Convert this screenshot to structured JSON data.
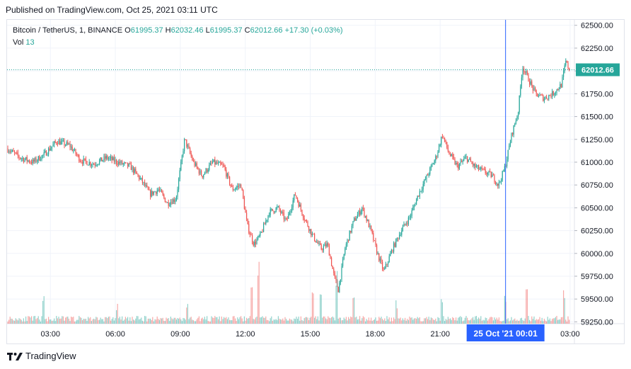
{
  "header": {
    "published": "Published on TradingView.com, Oct 25, 2021 03:11 UTC"
  },
  "legend": {
    "symbol": "Bitcoin / TetherUS, 1, BINANCE",
    "open_label": "O",
    "open": "61995.37",
    "high_label": "H",
    "high": "62032.46",
    "low_label": "L",
    "low": "61995.37",
    "close_label": "C",
    "close": "62012.66",
    "change": "+17.30 (+0.03%)",
    "vol_label": "Vol",
    "vol": "13"
  },
  "footer": {
    "brand": "TradingView"
  },
  "colors": {
    "up": "#26a69a",
    "down": "#ef5350",
    "crosshair": "#2962ff",
    "grid": "#f0f3fa",
    "axis_text": "#131722"
  },
  "chart_data": {
    "type": "candlestick",
    "title": "Bitcoin / TetherUS, 1, BINANCE",
    "grid": true,
    "y_axis": {
      "position": "right",
      "ticks": [
        "62500.00",
        "62250.00",
        "62000.00",
        "61750.00",
        "61500.00",
        "61250.00",
        "61000.00",
        "60750.00",
        "60500.00",
        "60250.00",
        "60000.00",
        "59750.00",
        "59500.00",
        "59250.00"
      ],
      "range": [
        59230,
        62560
      ]
    },
    "x_axis": {
      "ticks": [
        "03:00",
        "06:00",
        "09:00",
        "12:00",
        "15:00",
        "18:00",
        "21:00",
        "03:00"
      ],
      "tick_hours": [
        3,
        6,
        9,
        12,
        15,
        18,
        21,
        27
      ],
      "range_hours": [
        1.0,
        27.2
      ]
    },
    "last_price": {
      "value": 62012.66,
      "label": "62012.66"
    },
    "crosshair": {
      "label": "25 Oct '21   00:01",
      "hour": 24.02
    },
    "price_path": [
      [
        1.0,
        61150
      ],
      [
        1.6,
        61050
      ],
      [
        2.2,
        61000
      ],
      [
        2.7,
        61080
      ],
      [
        3.3,
        61230
      ],
      [
        3.9,
        61180
      ],
      [
        4.4,
        61020
      ],
      [
        5.0,
        60980
      ],
      [
        5.6,
        61050
      ],
      [
        6.1,
        61000
      ],
      [
        6.7,
        60950
      ],
      [
        7.2,
        60800
      ],
      [
        7.6,
        60650
      ],
      [
        8.0,
        60700
      ],
      [
        8.4,
        60550
      ],
      [
        8.8,
        60600
      ],
      [
        9.2,
        61250
      ],
      [
        9.6,
        61000
      ],
      [
        10.0,
        60850
      ],
      [
        10.5,
        61000
      ],
      [
        11.0,
        60950
      ],
      [
        11.4,
        60700
      ],
      [
        11.8,
        60750
      ],
      [
        12.1,
        60300
      ],
      [
        12.4,
        60100
      ],
      [
        12.7,
        60200
      ],
      [
        13.1,
        60450
      ],
      [
        13.5,
        60500
      ],
      [
        13.9,
        60350
      ],
      [
        14.3,
        60650
      ],
      [
        14.7,
        60400
      ],
      [
        15.1,
        60200
      ],
      [
        15.5,
        60050
      ],
      [
        15.8,
        60100
      ],
      [
        16.1,
        59750
      ],
      [
        16.3,
        59600
      ],
      [
        16.6,
        60050
      ],
      [
        17.0,
        60350
      ],
      [
        17.4,
        60500
      ],
      [
        17.8,
        60250
      ],
      [
        18.1,
        60000
      ],
      [
        18.4,
        59800
      ],
      [
        18.8,
        60050
      ],
      [
        19.2,
        60250
      ],
      [
        19.6,
        60400
      ],
      [
        20.0,
        60650
      ],
      [
        20.4,
        60850
      ],
      [
        20.8,
        61050
      ],
      [
        21.1,
        61300
      ],
      [
        21.4,
        61100
      ],
      [
        21.8,
        60950
      ],
      [
        22.2,
        61050
      ],
      [
        22.6,
        60950
      ],
      [
        23.0,
        60900
      ],
      [
        23.4,
        60850
      ],
      [
        23.7,
        60750
      ],
      [
        24.0,
        60950
      ],
      [
        24.3,
        61300
      ],
      [
        24.6,
        61550
      ],
      [
        24.8,
        62050
      ],
      [
        25.1,
        61900
      ],
      [
        25.4,
        61750
      ],
      [
        25.8,
        61700
      ],
      [
        26.2,
        61750
      ],
      [
        26.6,
        61850
      ],
      [
        26.8,
        62100
      ],
      [
        27.0,
        62000
      ]
    ],
    "volume_spikes": [
      [
        2.7,
        40
      ],
      [
        6.1,
        30
      ],
      [
        9.3,
        35
      ],
      [
        12.3,
        70
      ],
      [
        12.6,
        90
      ],
      [
        15.1,
        60
      ],
      [
        15.5,
        55
      ],
      [
        16.2,
        80
      ],
      [
        17.0,
        45
      ],
      [
        19.0,
        35
      ],
      [
        21.1,
        40
      ],
      [
        24.0,
        45
      ],
      [
        25.0,
        70
      ],
      [
        26.7,
        50
      ]
    ]
  }
}
